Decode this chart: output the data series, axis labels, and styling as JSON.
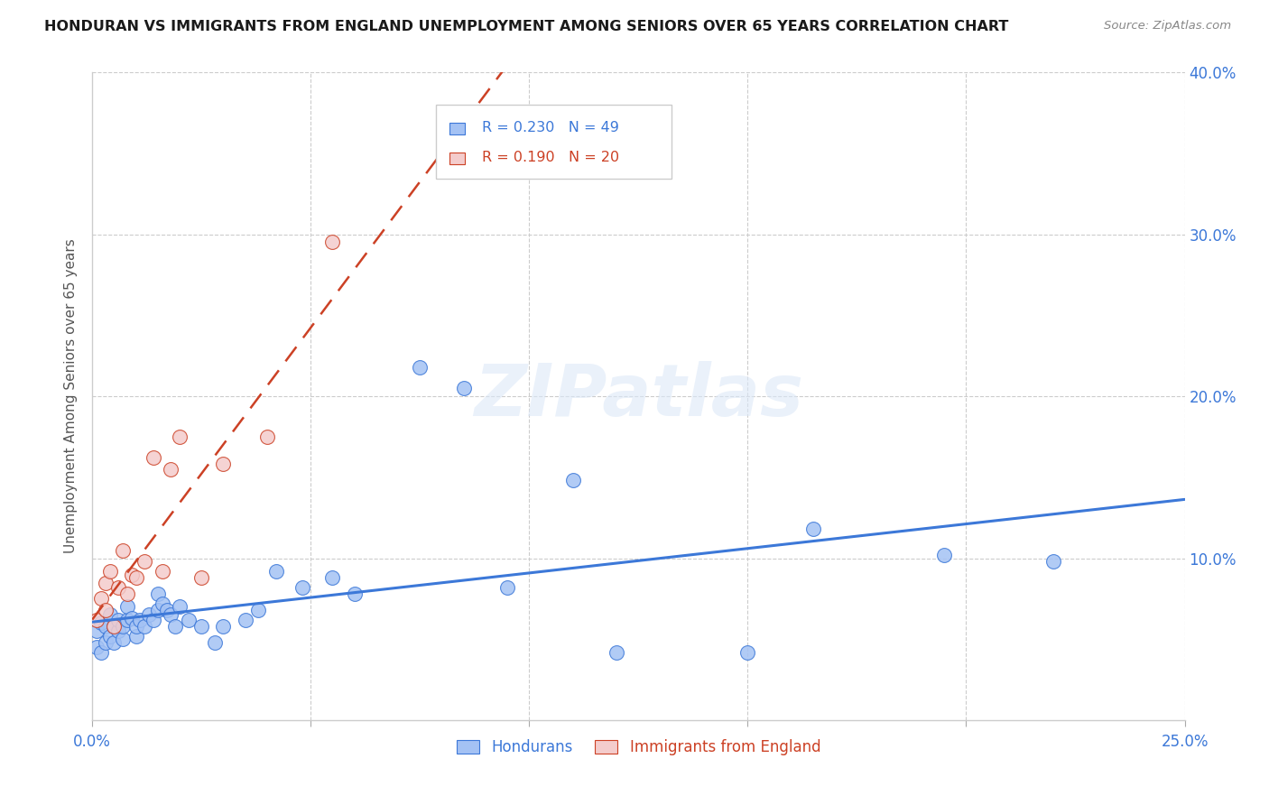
{
  "title": "HONDURAN VS IMMIGRANTS FROM ENGLAND UNEMPLOYMENT AMONG SENIORS OVER 65 YEARS CORRELATION CHART",
  "source": "Source: ZipAtlas.com",
  "ylabel": "Unemployment Among Seniors over 65 years",
  "xlim": [
    0.0,
    0.25
  ],
  "ylim": [
    0.0,
    0.4
  ],
  "legend1_label": "Hondurans",
  "legend2_label": "Immigrants from England",
  "R1": 0.23,
  "N1": 49,
  "R2": 0.19,
  "N2": 20,
  "blue_color": "#a4c2f4",
  "pink_color": "#f4cccc",
  "blue_line_color": "#3c78d8",
  "pink_line_color": "#cc4125",
  "watermark": "ZIPatlas",
  "hondurans_x": [
    0.001,
    0.001,
    0.002,
    0.002,
    0.003,
    0.003,
    0.004,
    0.004,
    0.005,
    0.005,
    0.006,
    0.006,
    0.007,
    0.007,
    0.008,
    0.008,
    0.009,
    0.01,
    0.01,
    0.011,
    0.012,
    0.013,
    0.014,
    0.015,
    0.015,
    0.016,
    0.017,
    0.018,
    0.019,
    0.02,
    0.022,
    0.025,
    0.028,
    0.03,
    0.035,
    0.038,
    0.042,
    0.048,
    0.055,
    0.06,
    0.075,
    0.085,
    0.095,
    0.11,
    0.12,
    0.15,
    0.165,
    0.195,
    0.22
  ],
  "hondurans_y": [
    0.045,
    0.055,
    0.042,
    0.06,
    0.048,
    0.058,
    0.052,
    0.065,
    0.048,
    0.058,
    0.055,
    0.062,
    0.05,
    0.058,
    0.062,
    0.07,
    0.063,
    0.052,
    0.058,
    0.062,
    0.058,
    0.065,
    0.062,
    0.068,
    0.078,
    0.072,
    0.068,
    0.065,
    0.058,
    0.07,
    0.062,
    0.058,
    0.048,
    0.058,
    0.062,
    0.068,
    0.092,
    0.082,
    0.088,
    0.078,
    0.218,
    0.205,
    0.082,
    0.148,
    0.042,
    0.042,
    0.118,
    0.102,
    0.098
  ],
  "england_x": [
    0.001,
    0.002,
    0.003,
    0.003,
    0.004,
    0.005,
    0.006,
    0.007,
    0.008,
    0.009,
    0.01,
    0.012,
    0.014,
    0.016,
    0.018,
    0.02,
    0.025,
    0.03,
    0.04,
    0.055
  ],
  "england_y": [
    0.062,
    0.075,
    0.068,
    0.085,
    0.092,
    0.058,
    0.082,
    0.105,
    0.078,
    0.09,
    0.088,
    0.098,
    0.162,
    0.092,
    0.155,
    0.175,
    0.088,
    0.158,
    0.175,
    0.295
  ]
}
